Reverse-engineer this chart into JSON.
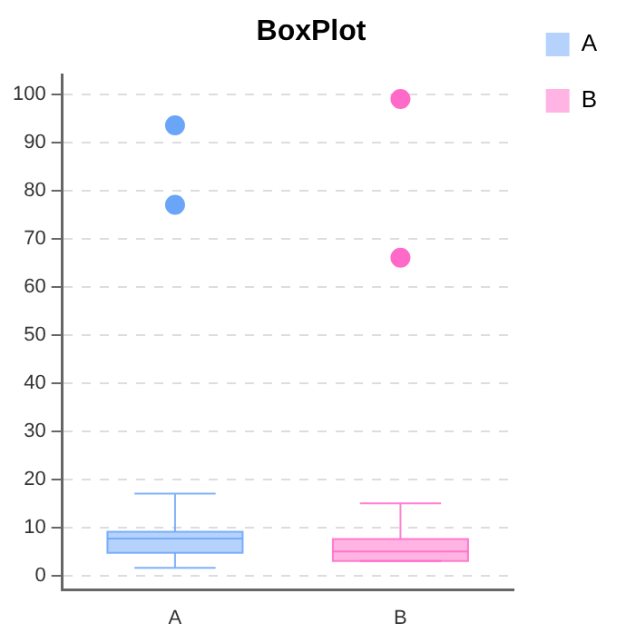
{
  "chart_data": {
    "type": "box",
    "title": "BoxPlot",
    "categories": [
      "A",
      "B"
    ],
    "series": [
      {
        "name": "A",
        "color": "#6aa5f8",
        "boxes": [
          {
            "low": 1.6,
            "q1": 4.7,
            "median": 7.7,
            "q3": 9.1,
            "high": 17,
            "outliers": [
              93.5,
              77
            ]
          },
          null
        ]
      },
      {
        "name": "B",
        "color": "#ff6ac8",
        "boxes": [
          null,
          {
            "low": 3,
            "q1": 3,
            "median": 5,
            "q3": 7.6,
            "high": 15,
            "outliers": [
              99,
              66
            ]
          }
        ]
      }
    ],
    "ylim": [
      -3,
      104
    ],
    "yticks": [
      0,
      10,
      20,
      30,
      40,
      50,
      60,
      70,
      80,
      90,
      100
    ],
    "grid": "y",
    "legend": "top right"
  }
}
